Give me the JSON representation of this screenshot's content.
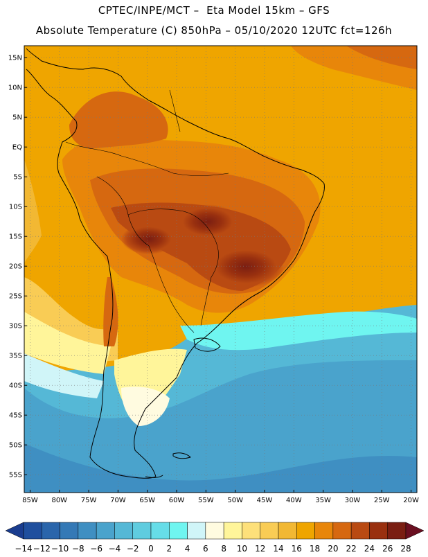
{
  "header": {
    "line1": "CPTEC/INPE/MCT –  Eta Model 15km – GFS",
    "line2": "Absolute Temperature (C) 850hPa – 05/10/2020 12UTC fct=126h"
  },
  "map": {
    "lat_labels": [
      "15N",
      "10N",
      "5N",
      "EQ",
      "5S",
      "10S",
      "15S",
      "20S",
      "25S",
      "30S",
      "35S",
      "40S",
      "45S",
      "50S",
      "55S"
    ],
    "lat_values": [
      15,
      10,
      5,
      0,
      -5,
      -10,
      -15,
      -20,
      -25,
      -30,
      -35,
      -40,
      -45,
      -50,
      -55
    ],
    "lon_labels": [
      "85W",
      "80W",
      "75W",
      "70W",
      "65W",
      "60W",
      "55W",
      "50W",
      "45W",
      "40W",
      "35W",
      "30W",
      "25W",
      "20W"
    ],
    "lon_values": [
      -85,
      -80,
      -75,
      -70,
      -65,
      -60,
      -55,
      -50,
      -45,
      -40,
      -35,
      -30,
      -25,
      -20
    ],
    "lat_range": [
      -58,
      17
    ],
    "lon_range": [
      -86,
      -19
    ]
  },
  "colorbar": {
    "labels": [
      "-14",
      "-12",
      "-10",
      "-8",
      "-6",
      "-4",
      "-2",
      "0",
      "2",
      "4",
      "6",
      "8",
      "10",
      "12",
      "14",
      "16",
      "18",
      "20",
      "22",
      "24",
      "26",
      "28"
    ],
    "colors": [
      "#1a3d8f",
      "#1f4f9e",
      "#2a65ab",
      "#3479b6",
      "#3f8fc2",
      "#4aa3cc",
      "#55b8d6",
      "#5fccdf",
      "#66dde8",
      "#6ff5f0",
      "#d0f5f8",
      "#fffbe0",
      "#fff59a",
      "#fde07a",
      "#f9cc55",
      "#f2b833",
      "#efa500",
      "#e8860a",
      "#d66810",
      "#b94a12",
      "#99300f",
      "#7a1e12",
      "#6a0f20"
    ]
  }
}
